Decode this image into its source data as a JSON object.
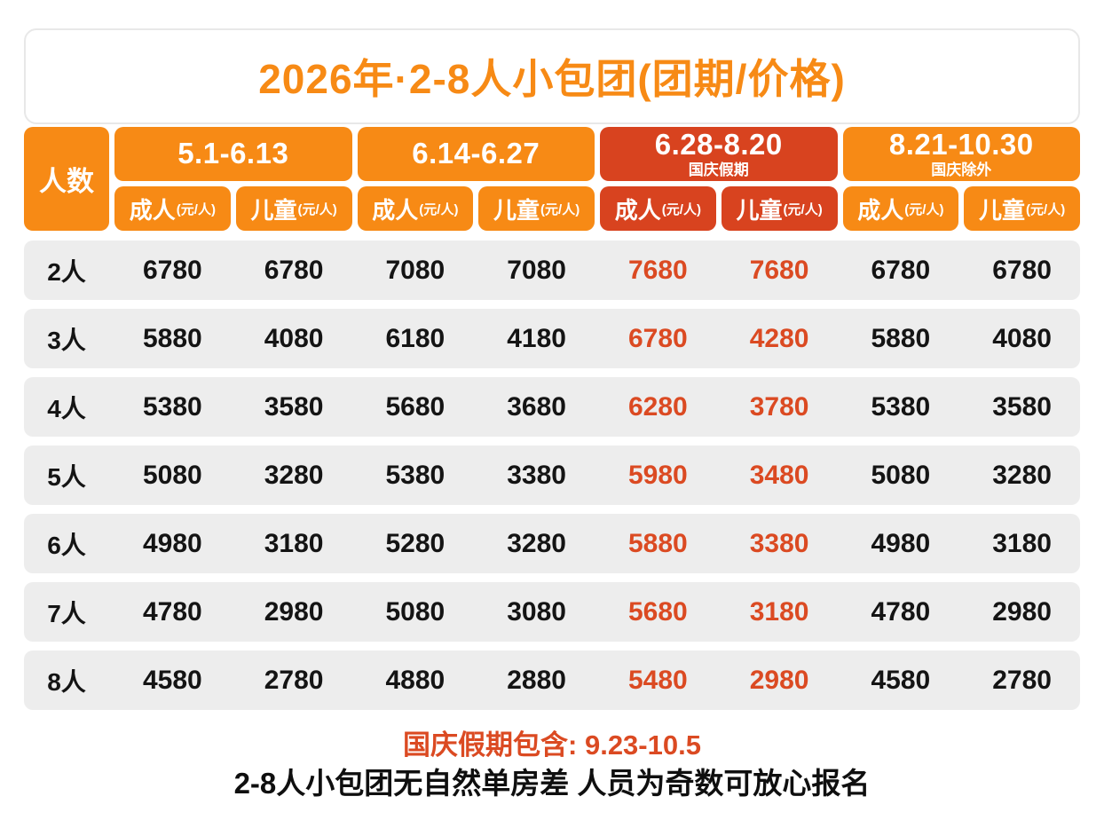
{
  "page": {
    "title": "2026年·2-8人小包团(团期/价格)"
  },
  "table": {
    "corner_label": "人数",
    "sub_headers": {
      "adult": "成人",
      "child": "儿童",
      "unit": "(元/人)"
    },
    "groups": [
      {
        "date": "5.1-6.13",
        "subtitle": "",
        "theme": "orange"
      },
      {
        "date": "6.14-6.27",
        "subtitle": "",
        "theme": "orange"
      },
      {
        "date": "6.28-8.20",
        "subtitle": "国庆假期",
        "theme": "red"
      },
      {
        "date": "8.21-10.30",
        "subtitle": "国庆除外",
        "theme": "orange"
      }
    ],
    "highlight_value_columns": [
      4,
      5
    ],
    "rows": [
      {
        "label": "2人",
        "values": [
          "6780",
          "6780",
          "7080",
          "7080",
          "7680",
          "7680",
          "6780",
          "6780"
        ]
      },
      {
        "label": "3人",
        "values": [
          "5880",
          "4080",
          "6180",
          "4180",
          "6780",
          "4280",
          "5880",
          "4080"
        ]
      },
      {
        "label": "4人",
        "values": [
          "5380",
          "3580",
          "5680",
          "3680",
          "6280",
          "3780",
          "5380",
          "3580"
        ]
      },
      {
        "label": "5人",
        "values": [
          "5080",
          "3280",
          "5380",
          "3380",
          "5980",
          "3480",
          "5080",
          "3280"
        ]
      },
      {
        "label": "6人",
        "values": [
          "4980",
          "3180",
          "5280",
          "3280",
          "5880",
          "3380",
          "4980",
          "3180"
        ]
      },
      {
        "label": "7人",
        "values": [
          "4780",
          "2980",
          "5080",
          "3080",
          "5680",
          "3180",
          "4780",
          "2980"
        ]
      },
      {
        "label": "8人",
        "values": [
          "4580",
          "2780",
          "4880",
          "2880",
          "5480",
          "2980",
          "4580",
          "2780"
        ]
      }
    ]
  },
  "footer": {
    "holiday_note": "国庆假期包含: 9.23-10.5",
    "policy_note": "2-8人小包团无自然单房差 人员为奇数可放心报名"
  },
  "colors": {
    "orange": "#F78A15",
    "red": "#D8431F",
    "price_highlight": "#DB4A22",
    "row_bg": "#EDEDED",
    "text": "#141414",
    "card_border": "#E8E8E8"
  },
  "chart_data": {
    "type": "table",
    "title": "2026年·2-8人小包团(团期/价格)",
    "column_groups": [
      {
        "label": "5.1-6.13",
        "subtitle": ""
      },
      {
        "label": "6.14-6.27",
        "subtitle": ""
      },
      {
        "label": "6.28-8.20",
        "subtitle": "国庆假期"
      },
      {
        "label": "8.21-10.30",
        "subtitle": "国庆除外"
      }
    ],
    "columns": [
      "人数",
      "5.1-6.13 成人(元/人)",
      "5.1-6.13 儿童(元/人)",
      "6.14-6.27 成人(元/人)",
      "6.14-6.27 儿童(元/人)",
      "6.28-8.20 成人(元/人)",
      "6.28-8.20 儿童(元/人)",
      "8.21-10.30 成人(元/人)",
      "8.21-10.30 儿童(元/人)"
    ],
    "rows": [
      [
        "2人",
        6780,
        6780,
        7080,
        7080,
        7680,
        7680,
        6780,
        6780
      ],
      [
        "3人",
        5880,
        4080,
        6180,
        4180,
        6780,
        4280,
        5880,
        4080
      ],
      [
        "4人",
        5380,
        3580,
        5680,
        3680,
        6280,
        3780,
        5380,
        3580
      ],
      [
        "5人",
        5080,
        3280,
        5380,
        3380,
        5980,
        3480,
        5080,
        3280
      ],
      [
        "6人",
        4980,
        3180,
        5280,
        3280,
        5880,
        3380,
        4980,
        3180
      ],
      [
        "7人",
        4780,
        2980,
        5080,
        3080,
        5680,
        3180,
        4780,
        2980
      ],
      [
        "8人",
        4580,
        2780,
        4880,
        2880,
        5480,
        2980,
        4580,
        2780
      ]
    ],
    "highlighted_columns": [
      "6.28-8.20 成人(元/人)",
      "6.28-8.20 儿童(元/人)"
    ],
    "notes": [
      "国庆假期包含: 9.23-10.5",
      "2-8人小包团无自然单房差 人员为奇数可放心报名"
    ]
  }
}
